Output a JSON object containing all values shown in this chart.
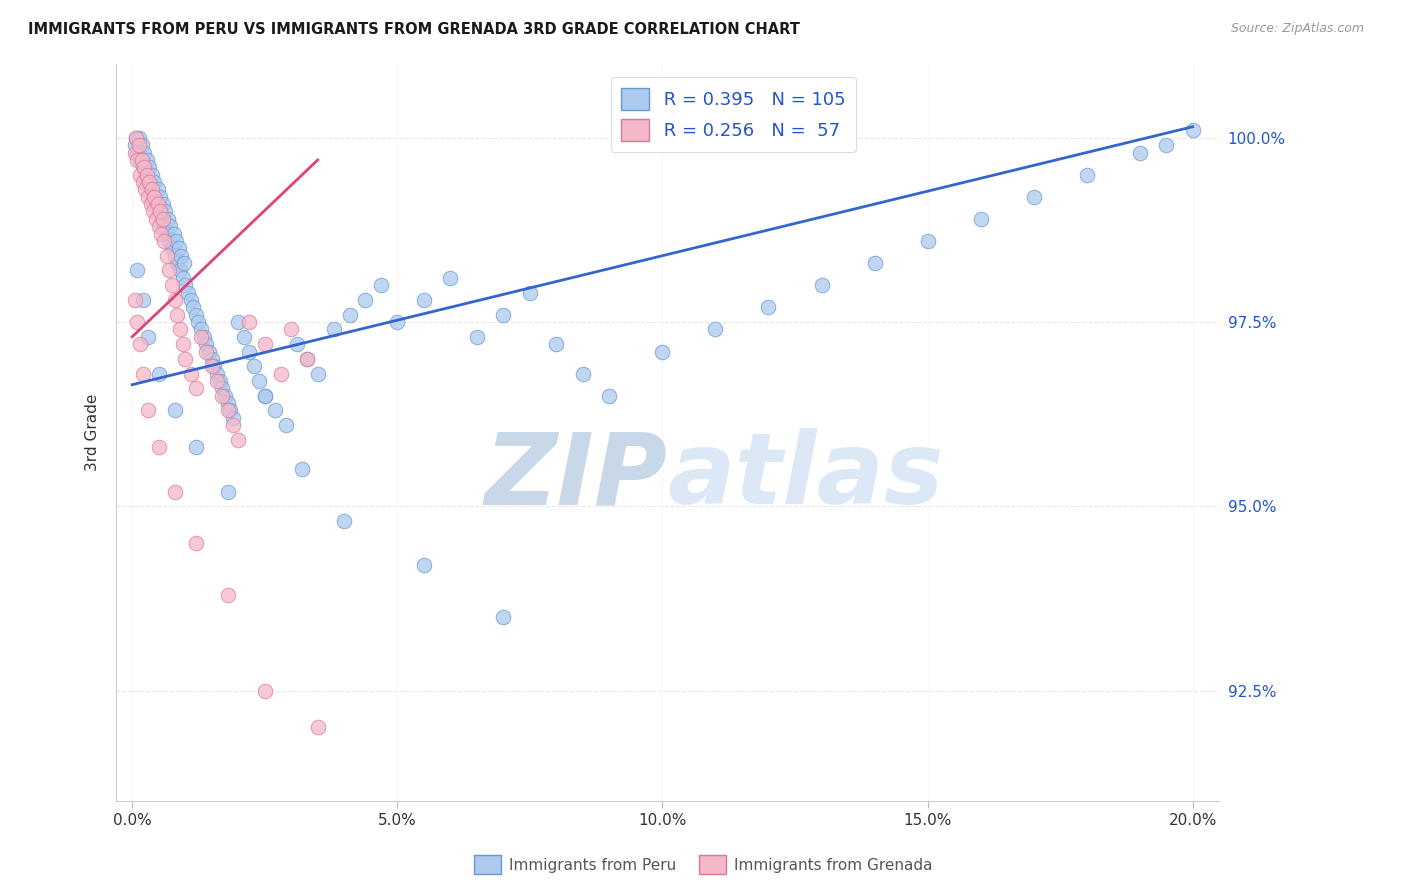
{
  "title": "IMMIGRANTS FROM PERU VS IMMIGRANTS FROM GRENADA 3RD GRADE CORRELATION CHART",
  "source": "Source: ZipAtlas.com",
  "ylabel": "3rd Grade",
  "x_tick_labels": [
    "0.0%",
    "5.0%",
    "10.0%",
    "15.0%",
    "20.0%"
  ],
  "x_tick_positions": [
    0.0,
    5.0,
    10.0,
    15.0,
    20.0
  ],
  "y_tick_labels": [
    "92.5%",
    "95.0%",
    "97.5%",
    "100.0%"
  ],
  "y_tick_positions": [
    92.5,
    95.0,
    97.5,
    100.0
  ],
  "xlim": [
    -0.3,
    20.5
  ],
  "ylim": [
    91.0,
    101.0
  ],
  "blue_R": 0.395,
  "blue_N": 105,
  "pink_R": 0.256,
  "pink_N": 57,
  "blue_fill": "#adc9ee",
  "blue_edge": "#6699cc",
  "pink_fill": "#f4b8c8",
  "pink_edge": "#dd7799",
  "trend_blue": "#3366cc",
  "trend_pink": "#dd4477",
  "right_tick_color": "#2255cc",
  "watermark_main": "#dce8f5",
  "watermark_accent": "#b8cce8",
  "background": "#ffffff",
  "grid_color": "#e8e8e8",
  "blue_trend": [
    0.0,
    20.0,
    96.65,
    100.15
  ],
  "pink_trend": [
    0.0,
    3.5,
    97.3,
    99.7
  ],
  "bottom_legend_labels": [
    "Immigrants from Peru",
    "Immigrants from Grenada"
  ],
  "blue_scatter_x": [
    0.05,
    0.08,
    0.1,
    0.12,
    0.15,
    0.18,
    0.2,
    0.22,
    0.25,
    0.28,
    0.3,
    0.32,
    0.35,
    0.38,
    0.4,
    0.42,
    0.45,
    0.48,
    0.5,
    0.52,
    0.55,
    0.58,
    0.6,
    0.62,
    0.65,
    0.68,
    0.7,
    0.72,
    0.75,
    0.78,
    0.8,
    0.82,
    0.85,
    0.88,
    0.9,
    0.92,
    0.95,
    0.98,
    1.0,
    1.05,
    1.1,
    1.15,
    1.2,
    1.25,
    1.3,
    1.35,
    1.4,
    1.45,
    1.5,
    1.55,
    1.6,
    1.65,
    1.7,
    1.75,
    1.8,
    1.85,
    1.9,
    2.0,
    2.1,
    2.2,
    2.3,
    2.4,
    2.5,
    2.7,
    2.9,
    3.1,
    3.3,
    3.5,
    3.8,
    4.1,
    4.4,
    4.7,
    5.0,
    5.5,
    6.0,
    6.5,
    7.0,
    7.5,
    8.0,
    8.5,
    9.0,
    10.0,
    11.0,
    12.0,
    13.0,
    14.0,
    15.0,
    16.0,
    17.0,
    18.0,
    19.0,
    19.5,
    20.0,
    0.1,
    0.2,
    0.3,
    0.5,
    0.8,
    1.2,
    1.8,
    2.5,
    3.2,
    4.0,
    5.5,
    7.0
  ],
  "blue_scatter_y": [
    99.9,
    100.0,
    99.8,
    100.0,
    99.7,
    99.9,
    99.6,
    99.8,
    99.5,
    99.7,
    99.4,
    99.6,
    99.3,
    99.5,
    99.2,
    99.4,
    99.1,
    99.3,
    99.0,
    99.2,
    98.9,
    99.1,
    98.8,
    99.0,
    98.7,
    98.9,
    98.6,
    98.8,
    98.5,
    98.7,
    98.4,
    98.6,
    98.3,
    98.5,
    98.2,
    98.4,
    98.1,
    98.3,
    98.0,
    97.9,
    97.8,
    97.7,
    97.6,
    97.5,
    97.4,
    97.3,
    97.2,
    97.1,
    97.0,
    96.9,
    96.8,
    96.7,
    96.6,
    96.5,
    96.4,
    96.3,
    96.2,
    97.5,
    97.3,
    97.1,
    96.9,
    96.7,
    96.5,
    96.3,
    96.1,
    97.2,
    97.0,
    96.8,
    97.4,
    97.6,
    97.8,
    98.0,
    97.5,
    97.8,
    98.1,
    97.3,
    97.6,
    97.9,
    97.2,
    96.8,
    96.5,
    97.1,
    97.4,
    97.7,
    98.0,
    98.3,
    98.6,
    98.9,
    99.2,
    99.5,
    99.8,
    99.9,
    100.1,
    98.2,
    97.8,
    97.3,
    96.8,
    96.3,
    95.8,
    95.2,
    96.5,
    95.5,
    94.8,
    94.2,
    93.5
  ],
  "pink_scatter_x": [
    0.05,
    0.08,
    0.1,
    0.12,
    0.15,
    0.18,
    0.2,
    0.22,
    0.25,
    0.28,
    0.3,
    0.32,
    0.35,
    0.38,
    0.4,
    0.42,
    0.45,
    0.48,
    0.5,
    0.52,
    0.55,
    0.58,
    0.6,
    0.65,
    0.7,
    0.75,
    0.8,
    0.85,
    0.9,
    0.95,
    1.0,
    1.1,
    1.2,
    1.3,
    1.4,
    1.5,
    1.6,
    1.7,
    1.8,
    1.9,
    2.0,
    2.2,
    2.5,
    2.8,
    3.0,
    3.3,
    0.05,
    0.1,
    0.15,
    0.2,
    0.3,
    0.5,
    0.8,
    1.2,
    1.8,
    2.5,
    3.5
  ],
  "pink_scatter_y": [
    99.8,
    100.0,
    99.7,
    99.9,
    99.5,
    99.7,
    99.4,
    99.6,
    99.3,
    99.5,
    99.2,
    99.4,
    99.1,
    99.3,
    99.0,
    99.2,
    98.9,
    99.1,
    98.8,
    99.0,
    98.7,
    98.9,
    98.6,
    98.4,
    98.2,
    98.0,
    97.8,
    97.6,
    97.4,
    97.2,
    97.0,
    96.8,
    96.6,
    97.3,
    97.1,
    96.9,
    96.7,
    96.5,
    96.3,
    96.1,
    95.9,
    97.5,
    97.2,
    96.8,
    97.4,
    97.0,
    97.8,
    97.5,
    97.2,
    96.8,
    96.3,
    95.8,
    95.2,
    94.5,
    93.8,
    92.5,
    92.0
  ]
}
